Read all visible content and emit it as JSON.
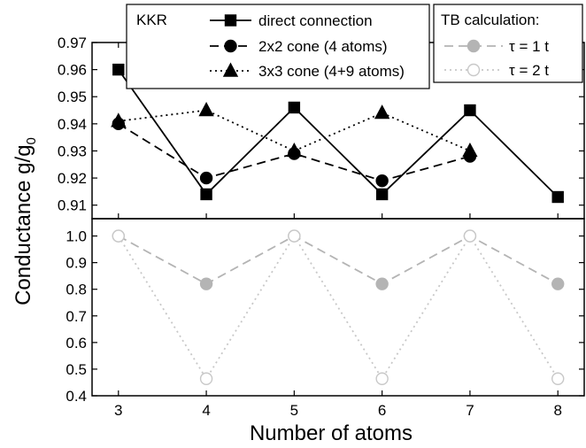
{
  "chart_data": {
    "type": "line",
    "xlabel": "Number of atoms",
    "ylabel_main": "Conductance g/g",
    "ylabel_sub": "0",
    "xticks": [
      3,
      4,
      5,
      6,
      7,
      8
    ],
    "xlim": [
      2.7,
      8.3
    ],
    "panels": [
      {
        "id": "top",
        "ylim": [
          0.905,
          0.97
        ],
        "yticks": [
          0.91,
          0.92,
          0.93,
          0.94,
          0.95,
          0.96,
          0.97
        ],
        "ytick_labels": [
          "0.91",
          "0.92",
          "0.93",
          "0.94",
          "0.95",
          "0.96",
          "0.97"
        ],
        "legend_title": "KKR",
        "series": [
          {
            "name": "direct connection",
            "marker": "square",
            "filled": true,
            "line": "solid",
            "color": "#000000",
            "x": [
              3,
              4,
              5,
              6,
              7,
              8
            ],
            "y": [
              0.96,
              0.914,
              0.946,
              0.914,
              0.945,
              0.913
            ]
          },
          {
            "name": "2x2 cone (4 atoms)",
            "marker": "circle",
            "filled": true,
            "line": "dashed",
            "color": "#000000",
            "x": [
              3,
              4,
              5,
              6,
              7
            ],
            "y": [
              0.94,
              0.92,
              0.929,
              0.919,
              0.928
            ]
          },
          {
            "name": "3x3 cone (4+9 atoms)",
            "marker": "triangle",
            "filled": true,
            "line": "dotted",
            "color": "#000000",
            "x": [
              3,
              4,
              5,
              6,
              7
            ],
            "y": [
              0.941,
              0.945,
              0.93,
              0.944,
              0.93
            ]
          }
        ]
      },
      {
        "id": "bottom",
        "ylim": [
          0.4,
          1.065
        ],
        "yticks": [
          0.4,
          0.5,
          0.6,
          0.7,
          0.8,
          0.9,
          1.0
        ],
        "ytick_labels": [
          "0.4",
          "0.5",
          "0.6",
          "0.7",
          "0.8",
          "0.9",
          "1.0"
        ],
        "legend_title": "TB calculation:",
        "series": [
          {
            "name": "τ = 1 t",
            "marker": "circle",
            "filled": true,
            "line": "dashed",
            "color": "#b4b4b4",
            "x": [
              3,
              4,
              5,
              6,
              7,
              8
            ],
            "y": [
              1.0,
              0.82,
              1.0,
              0.82,
              1.0,
              0.82
            ]
          },
          {
            "name": "τ = 2 t",
            "marker": "circle",
            "filled": false,
            "line": "dotted",
            "color": "#c8c8c8",
            "x": [
              3,
              4,
              5,
              6,
              7,
              8
            ],
            "y": [
              1.0,
              0.464,
              1.0,
              0.464,
              1.0,
              0.464
            ]
          }
        ]
      }
    ]
  }
}
